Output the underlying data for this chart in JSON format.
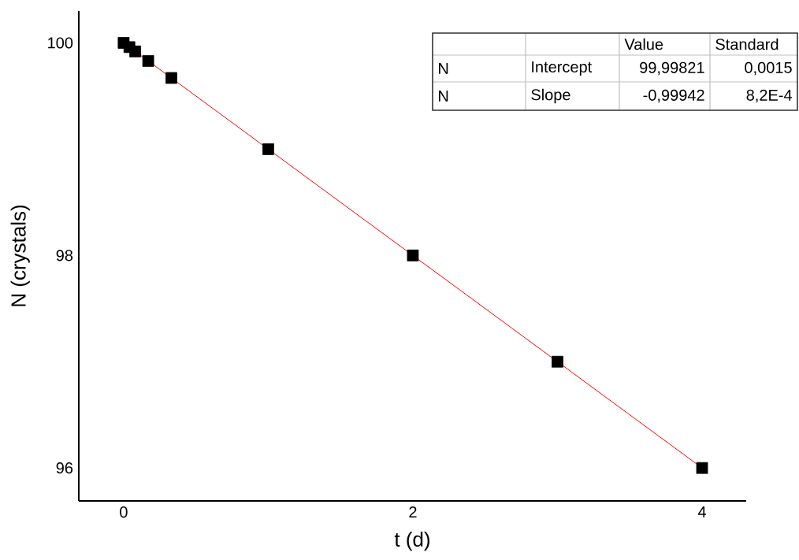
{
  "chart_data": {
    "type": "scatter",
    "xlabel": "t (d)",
    "ylabel": "N (crystals)",
    "xlim": [
      -0.31,
      4.305
    ],
    "ylim": [
      95.69,
      100.3
    ],
    "xticks": [
      0,
      2,
      4
    ],
    "yticks": [
      96,
      98,
      100
    ],
    "annotations": [
      "Value",
      "Standard",
      "N",
      "Intercept",
      "99,99821",
      "0,0015",
      "N",
      "Slope",
      "-0,99942",
      "8,2E-4"
    ],
    "series": [
      {
        "type": "line",
        "marker": "none",
        "color": "#ff0000",
        "x": [
          0,
          4
        ],
        "values": [
          100,
          96
        ]
      },
      {
        "marker": "square",
        "color": "#000000",
        "x": [
          0,
          0.04,
          0.08,
          0.17,
          0.33,
          1,
          2,
          3,
          4
        ],
        "values": [
          100,
          99.96,
          99.92,
          99.83,
          99.67,
          99,
          98,
          97,
          96
        ]
      }
    ]
  }
}
